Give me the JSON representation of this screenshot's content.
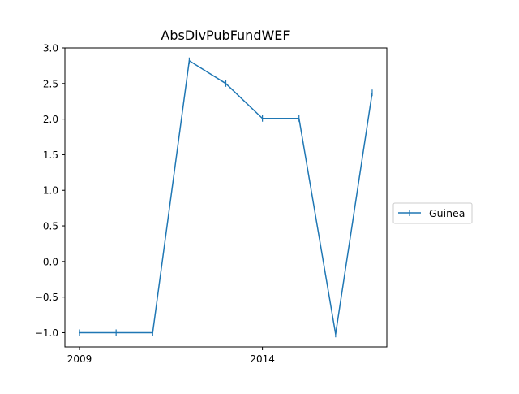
{
  "chart_data": {
    "type": "line",
    "title": "AbsDivPubFundWEF",
    "xlabel": "",
    "ylabel": "",
    "x": [
      2009,
      2010,
      2011,
      2012,
      2013,
      2014,
      2015,
      2016,
      2017
    ],
    "x_ticks": [
      2009,
      2014
    ],
    "x_tick_labels": [
      "2009",
      "2014"
    ],
    "xlim": [
      2008.6,
      2017.4
    ],
    "ylim": [
      -1.2,
      3.0
    ],
    "y_ticks": [
      -1.0,
      -0.5,
      0.0,
      0.5,
      1.0,
      1.5,
      2.0,
      2.5,
      3.0
    ],
    "y_tick_labels": [
      "−1.0",
      "−0.5",
      "0.0",
      "0.5",
      "1.0",
      "1.5",
      "2.0",
      "2.5",
      "3.0"
    ],
    "grid": false,
    "legend_position": "right",
    "series": [
      {
        "name": "Guinea",
        "color": "#1f77b4",
        "marker": "vertical-line",
        "values": [
          -1.0,
          -1.0,
          -1.0,
          2.82,
          2.5,
          2.01,
          2.01,
          -1.02,
          2.37
        ]
      }
    ]
  }
}
